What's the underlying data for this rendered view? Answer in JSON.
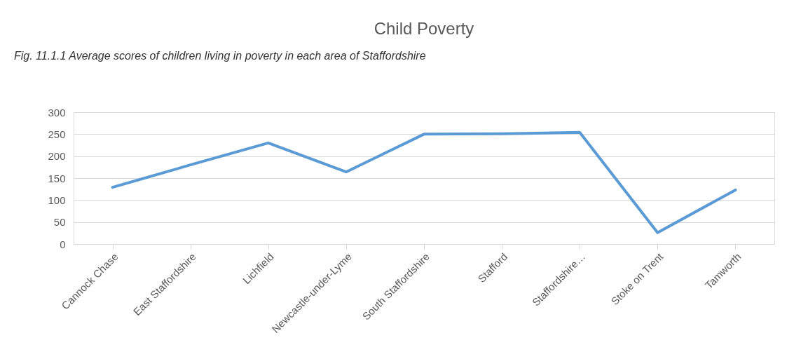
{
  "chart_data": {
    "type": "line",
    "title": "Child Poverty",
    "annotations": [
      "Fig. 11.1.1 Average scores of children living in poverty in each area of Staffordshire"
    ],
    "categories": [
      "Cannock Chase",
      "East Staffordshire",
      "Lichfield",
      "Newcastle-under-Lyme",
      "South Staffordshire",
      "Stafford",
      "Staffordshire…",
      "Stoke on Trent",
      "Tamworth"
    ],
    "series": [
      {
        "color": "#5b9bd5",
        "values": [
          129,
          180,
          230,
          164,
          250,
          251,
          254,
          26,
          123
        ]
      }
    ],
    "ylim": [
      0,
      300
    ],
    "yticks": [
      0,
      50,
      100,
      150,
      200,
      250,
      300
    ],
    "grid": "y",
    "marker": "none",
    "line_style": "solid"
  }
}
